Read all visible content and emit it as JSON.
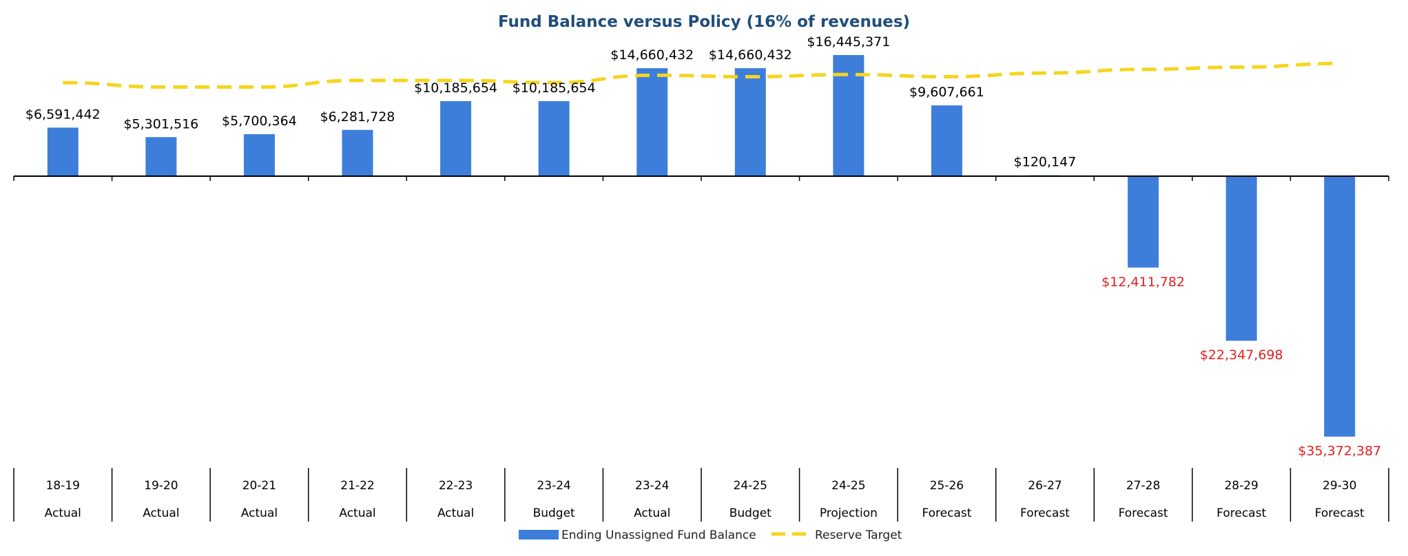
{
  "chart_data": {
    "type": "bar",
    "title": "Fund Balance versus Policy (16% of revenues)",
    "categories": [
      {
        "period": "18-19",
        "kind": "Actual"
      },
      {
        "period": "19-20",
        "kind": "Actual"
      },
      {
        "period": "20-21",
        "kind": "Actual"
      },
      {
        "period": "21-22",
        "kind": "Actual"
      },
      {
        "period": "22-23",
        "kind": "Actual"
      },
      {
        "period": "23-24",
        "kind": "Budget"
      },
      {
        "period": "23-24",
        "kind": "Actual"
      },
      {
        "period": "24-25",
        "kind": "Budget"
      },
      {
        "period": "24-25",
        "kind": "Projection"
      },
      {
        "period": "25-26",
        "kind": "Forecast"
      },
      {
        "period": "26-27",
        "kind": "Forecast"
      },
      {
        "period": "27-28",
        "kind": "Forecast"
      },
      {
        "period": "28-29",
        "kind": "Forecast"
      },
      {
        "period": "29-30",
        "kind": "Forecast"
      }
    ],
    "series": [
      {
        "name": "Ending Unassigned Fund Balance",
        "type": "bar",
        "color": "#3d7edb",
        "values": [
          6591442,
          5301516,
          5700364,
          6281728,
          10185654,
          10185654,
          14660432,
          14660432,
          16445371,
          9607661,
          120147,
          -12411782,
          -22347698,
          -35372387
        ],
        "labels": [
          "$6,591,442",
          "$5,301,516",
          "$5,700,364",
          "$6,281,728",
          "$10,185,654",
          "$10,185,654",
          "$14,660,432",
          "$14,660,432",
          "$16,445,371",
          "$9,607,661",
          "$120,147",
          "$12,411,782",
          "$22,347,698",
          "$35,372,387"
        ],
        "negative_label_color": "#e02020"
      },
      {
        "name": "Reserve Target",
        "type": "line",
        "style": "dashed",
        "color": "#f5d51f",
        "values": [
          12700000,
          12100000,
          12100000,
          13000000,
          13000000,
          12700000,
          13700000,
          13500000,
          13800000,
          13500000,
          14000000,
          14500000,
          14800000,
          15300000
        ]
      }
    ],
    "ylim": [
      -36800000,
      17500000
    ],
    "grid": false,
    "legend": "bottom-center"
  }
}
